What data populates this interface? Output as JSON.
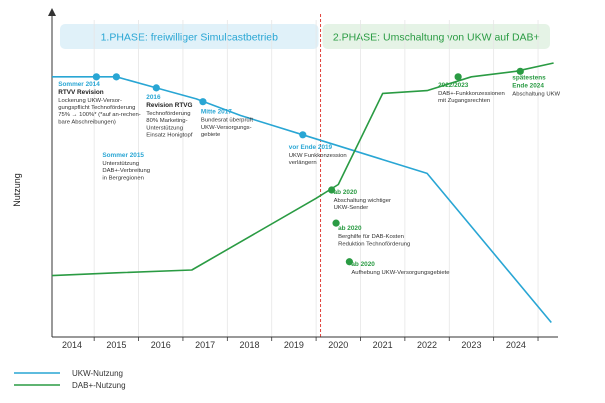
{
  "chart_data": {
    "type": "line",
    "ylabel": "Nutzung",
    "categories": [
      "2014",
      "2015",
      "2016",
      "2017",
      "2018",
      "2019",
      "2020",
      "2021",
      "2022",
      "2023",
      "2024"
    ],
    "phases": [
      {
        "label": "1.PHASE: freiwilliger Simulcastbetrieb",
        "start": 2013.6,
        "end": 2019.6,
        "bg": "#e0f1f9",
        "text_color": "#29a6d4"
      },
      {
        "label": "2.PHASE: Umschaltung von UKW auf DAB+",
        "start": 2019.6,
        "end": 2024.85,
        "bg": "#e5f3e6",
        "text_color": "#2a9b43"
      }
    ],
    "phase_divider_year": 2019.6,
    "series": [
      {
        "name": "UKW-Nutzung",
        "color": "#29a6d4",
        "x": [
          2013.55,
          2014.5,
          2015.0,
          2015.9,
          2016.8,
          2017.8,
          2019.2,
          2020.0,
          2021.0,
          2022.0,
          2024.8
        ],
        "y": [
          0.91,
          0.91,
          0.91,
          0.87,
          0.83,
          0.77,
          0.7,
          0.66,
          0.61,
          0.56,
          0.02
        ]
      },
      {
        "name": "DAB+-Nutzung",
        "color": "#2a9b43",
        "x": [
          2013.55,
          2015.0,
          2016.7,
          2019.5,
          2020.0,
          2021.0,
          2022.0,
          2023.0,
          2024.0,
          2024.85
        ],
        "y": [
          0.19,
          0.2,
          0.21,
          0.47,
          0.52,
          0.85,
          0.86,
          0.91,
          0.93,
          0.96
        ]
      }
    ],
    "milestones": [
      {
        "x": 2014.55,
        "y": 0.91,
        "series": "UKW-Nutzung",
        "date": "Sommer 2014",
        "title": "RTVV Revision",
        "lines": [
          "Lockerung UKW-Versor-",
          "gungspflicht Technoförderung",
          "75% → 100%* (*auf an-rechen-",
          "bare Abschreibungen)"
        ]
      },
      {
        "x": 2015.0,
        "y": 0.91,
        "series": "UKW-Nutzung",
        "date": "Sommer 2015",
        "title": "",
        "lines": [
          "Unterstützung",
          "DAB+-Verbreitung",
          "in Bergregionen"
        ]
      },
      {
        "x": 2015.9,
        "y": 0.87,
        "series": "UKW-Nutzung",
        "date": "2016",
        "title": "Revision RTVG",
        "lines": [
          "Technoförderung",
          "80% Marketing-",
          "Unterstützung",
          "Einsatz Honigtopf"
        ]
      },
      {
        "x": 2016.95,
        "y": 0.82,
        "series": "UKW-Nutzung",
        "date": "Mitte 2017",
        "title": "",
        "lines": [
          "Bundesrat überprüft",
          "UKW-Versorgungs-",
          "gebiete"
        ]
      },
      {
        "x": 2019.2,
        "y": 0.7,
        "series": "UKW-Nutzung",
        "date": "vor Ende 2019",
        "title": "",
        "lines": [
          "UKW Funkkonzession",
          "verlängern"
        ]
      },
      {
        "x": 2019.85,
        "y": 0.5,
        "series": "DAB+-Nutzung",
        "date": "ab 2020",
        "title": "",
        "lines": [
          "Abschaltung wichtiger",
          "UKW-Sender"
        ]
      },
      {
        "x": 2019.95,
        "y": 0.38,
        "series": "DAB+-Nutzung",
        "date": "ab 2020",
        "title": "",
        "lines": [
          "Berghilfe für DAB-Kosten",
          "Reduktion Technoförderung"
        ]
      },
      {
        "x": 2020.25,
        "y": 0.24,
        "series": "DAB+-Nutzung",
        "date": "ab 2020",
        "title": "",
        "lines": [
          "Aufhebung UKW-Versorgungsgebiete"
        ]
      },
      {
        "x": 2022.7,
        "y": 0.91,
        "series": "DAB+-Nutzung",
        "date": "2022/2023",
        "title": "",
        "lines": [
          "DAB+-Funkkonzessionen",
          "mit Zugangsrechten"
        ]
      },
      {
        "x": 2024.1,
        "y": 0.93,
        "series": "DAB+-Nutzung",
        "date": "spätestens",
        "title": "Ende 2024",
        "lines": [
          "Abschaltung UKW"
        ]
      }
    ],
    "xlim": [
      2013.55,
      2024.95
    ],
    "ylim": [
      0,
      1
    ],
    "grid": true,
    "legend_position": "bottom-left"
  }
}
